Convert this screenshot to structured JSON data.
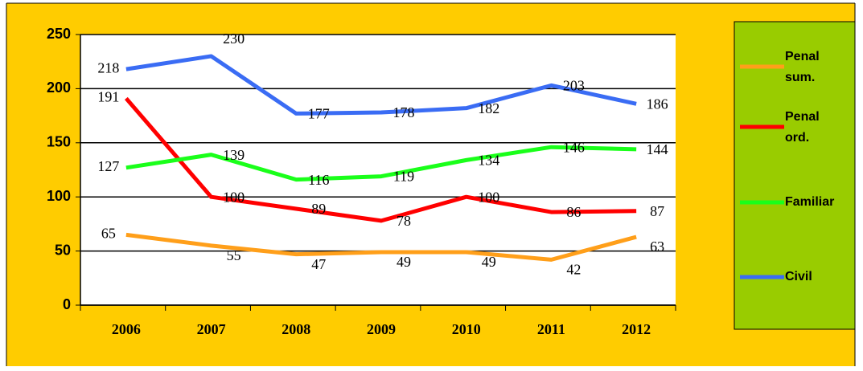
{
  "chart_data": {
    "type": "line",
    "categories": [
      "2006",
      "2007",
      "2008",
      "2009",
      "2010",
      "2011",
      "2012"
    ],
    "series": [
      {
        "name": "Penal sum.",
        "color": "#ff9f1a",
        "values": [
          65,
          55,
          47,
          49,
          49,
          42,
          63
        ]
      },
      {
        "name": "Penal ord.",
        "color": "#ff0000",
        "values": [
          191,
          100,
          89,
          78,
          100,
          86,
          87
        ]
      },
      {
        "name": "Familiar",
        "color": "#1aff1a",
        "values": [
          127,
          139,
          116,
          119,
          134,
          146,
          144
        ]
      },
      {
        "name": "Civil",
        "color": "#3a6cf4",
        "values": [
          218,
          230,
          177,
          178,
          182,
          203,
          186
        ]
      }
    ],
    "ylim": [
      0,
      250
    ],
    "yticks": [
      0,
      50,
      100,
      150,
      200,
      250
    ],
    "grid": true,
    "legend": "right"
  }
}
